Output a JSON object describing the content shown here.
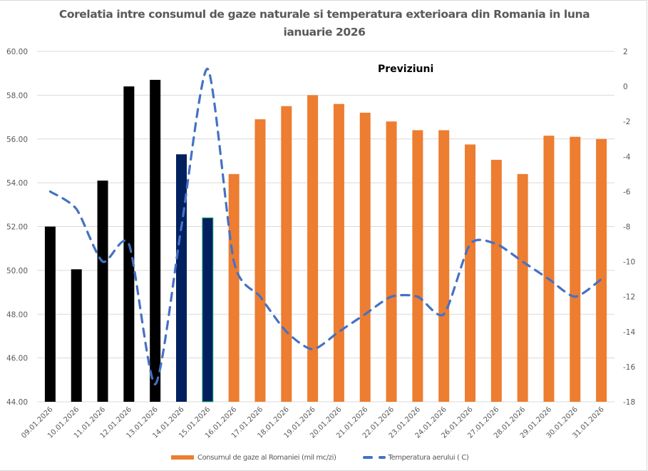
{
  "chart_data": {
    "type": "bar",
    "title": "Corelatia intre consumul de gaze naturale si temperatura exterioara din Romania in luna ianuarie 2026",
    "title_lines": [
      "Corelatia intre consumul de gaze naturale si temperatura exterioara din Romania in luna",
      "ianuarie 2026"
    ],
    "annotation": "Previziuni",
    "categories": [
      "09.01.2026",
      "10.01.2026",
      "11.01.2026",
      "12.01.2026",
      "13.01.2026",
      "14.01.2026",
      "15.01.2026",
      "16.01.2026",
      "17.01.2026",
      "18.01.2026",
      "19.01.2026",
      "20.01.2026",
      "21.01.2026",
      "22.01.2026",
      "23.01.2026",
      "24.01.2026",
      "26.01.2026",
      "27.01.2026",
      "28.01.2026",
      "29.01.2026",
      "30.01.2026",
      "31.01.2026"
    ],
    "series": [
      {
        "name": "Consumul de gaze al Romaniei (mil mc/zi)",
        "type": "bar",
        "axis": "left",
        "color": "#ed7d31",
        "values": [
          52.0,
          50.05,
          54.1,
          58.4,
          58.7,
          55.3,
          52.4,
          54.4,
          56.9,
          57.5,
          58.0,
          57.6,
          57.2,
          56.8,
          56.4,
          56.4,
          55.75,
          55.05,
          54.4,
          56.15,
          56.1,
          56.0
        ],
        "point_colors": [
          "#000000",
          "#000000",
          "#000000",
          "#000000",
          "#000000",
          "#002060",
          "#002060",
          "#ed7d31",
          "#ed7d31",
          "#ed7d31",
          "#ed7d31",
          "#ed7d31",
          "#ed7d31",
          "#ed7d31",
          "#ed7d31",
          "#ed7d31",
          "#ed7d31",
          "#ed7d31",
          "#ed7d31",
          "#ed7d31",
          "#ed7d31",
          "#ed7d31"
        ]
      },
      {
        "name": "Temperatura aerului ( C)",
        "type": "line",
        "style": "dashed",
        "axis": "right",
        "color": "#4472c4",
        "values": [
          -6,
          -7,
          -10,
          -9,
          -17,
          -8,
          1,
          -10,
          -12,
          -14,
          -15,
          -14,
          -13,
          -12,
          -12,
          -13,
          -9,
          -9,
          -10,
          -11,
          -12,
          -11
        ]
      }
    ],
    "y_left": {
      "range": [
        44,
        60
      ],
      "ticks": [
        "44.00",
        "46.00",
        "48.00",
        "50.00",
        "52.00",
        "54.00",
        "56.00",
        "58.00",
        "60.00"
      ]
    },
    "y_right": {
      "range": [
        -18,
        2
      ],
      "ticks": [
        "-18",
        "-16",
        "-14",
        "-12",
        "-10",
        "-8",
        "-6",
        "-4",
        "-2",
        "0",
        "2"
      ]
    },
    "xlabel": "",
    "ylabel": "",
    "grid": true,
    "legend_position": "bottom",
    "gridline_color": "#d9d9d9"
  }
}
